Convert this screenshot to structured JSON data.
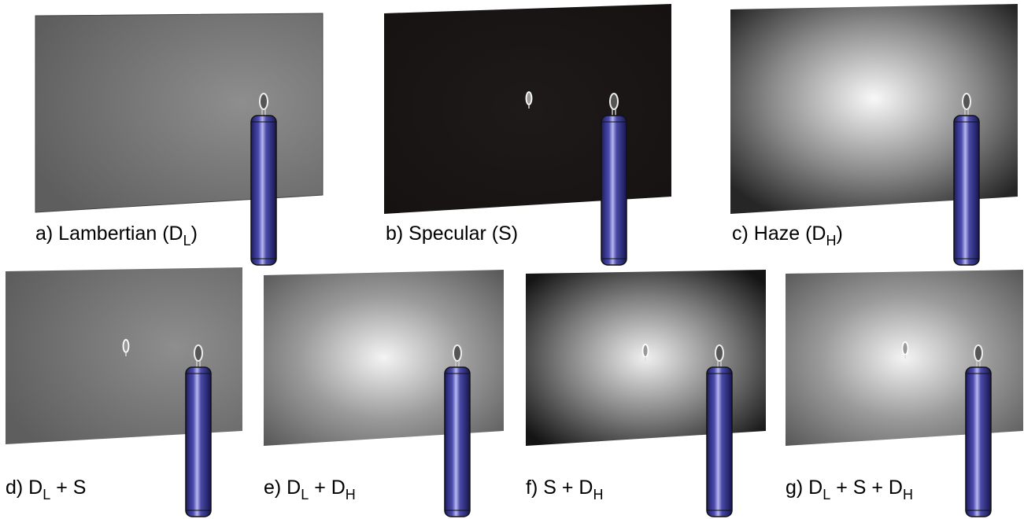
{
  "panels": [
    {
      "label": [
        {
          "text": "a) Lambertian (D"
        },
        {
          "sub": "L"
        },
        {
          "text": ")"
        }
      ]
    },
    {
      "label": [
        {
          "text": "b) Specular (S)"
        }
      ]
    },
    {
      "label": [
        {
          "text": "c) Haze (D"
        },
        {
          "sub": "H"
        },
        {
          "text": ")"
        }
      ]
    },
    {
      "label": [
        {
          "text": "d) D"
        },
        {
          "sub": "L"
        },
        {
          "text": " + S"
        }
      ]
    },
    {
      "label": [
        {
          "text": "e) D"
        },
        {
          "sub": "L"
        },
        {
          "text": " + D"
        },
        {
          "sub": "H"
        }
      ]
    },
    {
      "label": [
        {
          "text": "f) S + D"
        },
        {
          "sub": "H"
        }
      ]
    },
    {
      "label": [
        {
          "text": "g) D"
        },
        {
          "sub": "L"
        },
        {
          "text": " + S + D"
        },
        {
          "sub": "H"
        }
      ]
    }
  ]
}
